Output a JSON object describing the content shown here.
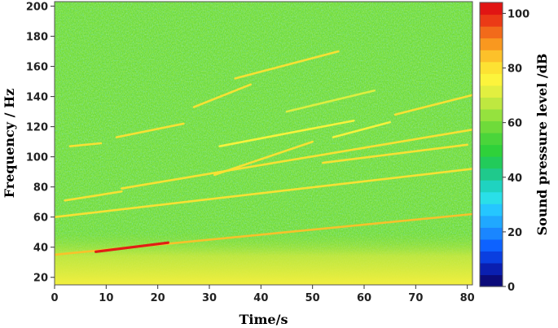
{
  "chart_data": {
    "type": "heatmap",
    "xlabel": "Time/s",
    "ylabel": "Frequency / Hz",
    "colorbar_label": "Sound pressure level /dB",
    "xlim": [
      0,
      81
    ],
    "ylim": [
      15,
      203
    ],
    "x_ticks": [
      0,
      10,
      20,
      30,
      40,
      50,
      60,
      70,
      80
    ],
    "y_ticks": [
      20,
      40,
      60,
      80,
      100,
      120,
      140,
      160,
      180,
      200
    ],
    "colorbar_range": [
      0,
      104
    ],
    "colorbar_ticks": [
      0,
      20,
      40,
      60,
      80,
      100
    ],
    "colorbar_colors": [
      "#0b0b7a",
      "#0a1fb0",
      "#0a3fe0",
      "#0d62ff",
      "#1a86ff",
      "#20a8ff",
      "#25c6ff",
      "#2adfe8",
      "#1fd3c0",
      "#1fc98c",
      "#22cb5a",
      "#2fd13a",
      "#4ad53a",
      "#6fdb3a",
      "#95e23e",
      "#bfe840",
      "#e2ef40",
      "#fcf43c",
      "#fde233",
      "#fdc12a",
      "#f9981f",
      "#f26a1a",
      "#eb3a16",
      "#e11513"
    ],
    "background_level_db": 60,
    "harmonic_lines": [
      {
        "x": [
          0,
          81
        ],
        "y": [
          35,
          62
        ],
        "level_db": 85
      },
      {
        "x": [
          8,
          22
        ],
        "y": [
          37,
          43
        ],
        "level_db": 100
      },
      {
        "x": [
          0,
          81
        ],
        "y": [
          60,
          92
        ],
        "level_db": 80
      },
      {
        "x": [
          2,
          13
        ],
        "y": [
          71,
          77
        ],
        "level_db": 82
      },
      {
        "x": [
          13,
          60
        ],
        "y": [
          79,
          106
        ],
        "level_db": 80
      },
      {
        "x": [
          60,
          81
        ],
        "y": [
          106,
          118
        ],
        "level_db": 80
      },
      {
        "x": [
          3,
          9
        ],
        "y": [
          107,
          109
        ],
        "level_db": 78
      },
      {
        "x": [
          12,
          25
        ],
        "y": [
          113,
          122
        ],
        "level_db": 78
      },
      {
        "x": [
          27,
          38
        ],
        "y": [
          133,
          148
        ],
        "level_db": 80
      },
      {
        "x": [
          35,
          55
        ],
        "y": [
          152,
          170
        ],
        "level_db": 78
      },
      {
        "x": [
          31,
          50
        ],
        "y": [
          88,
          110
        ],
        "level_db": 78
      },
      {
        "x": [
          52,
          80
        ],
        "y": [
          96,
          108
        ],
        "level_db": 78
      },
      {
        "x": [
          54,
          65
        ],
        "y": [
          113,
          123
        ],
        "level_db": 76
      },
      {
        "x": [
          66,
          81
        ],
        "y": [
          128,
          141
        ],
        "level_db": 78
      },
      {
        "x": [
          32,
          58
        ],
        "y": [
          107,
          124
        ],
        "level_db": 74
      },
      {
        "x": [
          45,
          62
        ],
        "y": [
          130,
          144
        ],
        "level_db": 72
      }
    ],
    "grid": false
  }
}
